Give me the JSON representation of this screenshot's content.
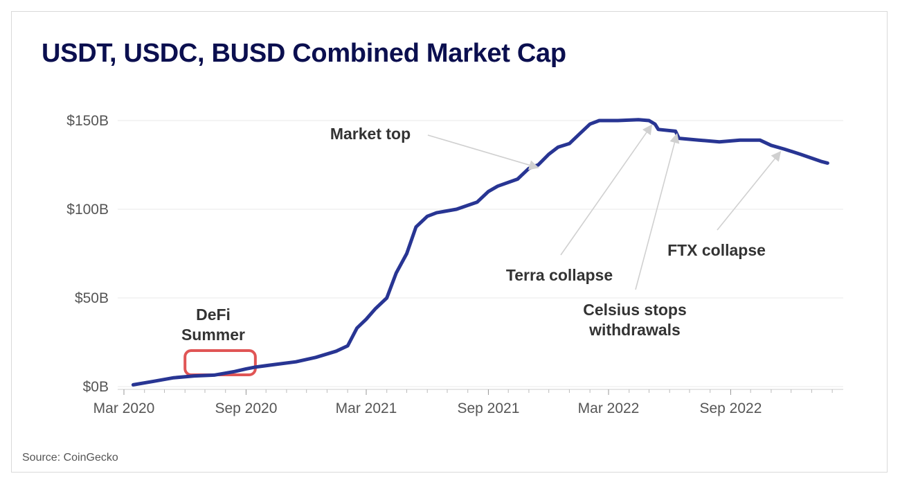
{
  "chart_data": {
    "type": "line",
    "title": "USDT, USDC, BUSD Combined Market Cap",
    "source": "Source: CoinGecko",
    "ylabel": "",
    "xlabel": "",
    "ylim": [
      0,
      150
    ],
    "y_ticks": [
      {
        "value": 0,
        "label": "$0B"
      },
      {
        "value": 50,
        "label": "$50B"
      },
      {
        "value": 100,
        "label": "$100B"
      },
      {
        "value": 150,
        "label": "$150B"
      }
    ],
    "x_range": [
      "2020-03-01",
      "2023-01-31"
    ],
    "x_ticks": [
      {
        "date": "2020-03-01",
        "label": "Mar 2020"
      },
      {
        "date": "2020-09-01",
        "label": "Sep 2020"
      },
      {
        "date": "2021-03-01",
        "label": "Mar 2021"
      },
      {
        "date": "2021-09-01",
        "label": "Sep 2021"
      },
      {
        "date": "2022-03-01",
        "label": "Mar 2022"
      },
      {
        "date": "2022-09-01",
        "label": "Sep 2022"
      }
    ],
    "series": [
      {
        "name": "USDT, USDC, BUSD Combined Market Cap",
        "color": "#283593",
        "points": [
          [
            "2020-03-15",
            1
          ],
          [
            "2020-04-15",
            3
          ],
          [
            "2020-05-15",
            5
          ],
          [
            "2020-06-15",
            6
          ],
          [
            "2020-07-15",
            6.5
          ],
          [
            "2020-08-15",
            8.5
          ],
          [
            "2020-09-01",
            10
          ],
          [
            "2020-09-15",
            11
          ],
          [
            "2020-10-15",
            12.5
          ],
          [
            "2020-11-15",
            14
          ],
          [
            "2020-12-15",
            16.5
          ],
          [
            "2021-01-15",
            20
          ],
          [
            "2021-02-01",
            23
          ],
          [
            "2021-02-15",
            33
          ],
          [
            "2021-03-01",
            38
          ],
          [
            "2021-03-15",
            44
          ],
          [
            "2021-04-01",
            50
          ],
          [
            "2021-04-15",
            64
          ],
          [
            "2021-05-01",
            75
          ],
          [
            "2021-05-15",
            90
          ],
          [
            "2021-06-01",
            96
          ],
          [
            "2021-06-15",
            98
          ],
          [
            "2021-07-15",
            100
          ],
          [
            "2021-08-15",
            104
          ],
          [
            "2021-09-01",
            110
          ],
          [
            "2021-09-15",
            113
          ],
          [
            "2021-10-15",
            117
          ],
          [
            "2021-11-01",
            123
          ],
          [
            "2021-11-15",
            125
          ],
          [
            "2021-12-01",
            131
          ],
          [
            "2021-12-15",
            135
          ],
          [
            "2022-01-01",
            137
          ],
          [
            "2022-01-15",
            142
          ],
          [
            "2022-02-01",
            148
          ],
          [
            "2022-02-15",
            150
          ],
          [
            "2022-03-15",
            150
          ],
          [
            "2022-04-15",
            150.5
          ],
          [
            "2022-05-01",
            150
          ],
          [
            "2022-05-10",
            148
          ],
          [
            "2022-05-15",
            145
          ],
          [
            "2022-06-10",
            144
          ],
          [
            "2022-06-15",
            140
          ],
          [
            "2022-07-15",
            139
          ],
          [
            "2022-08-15",
            138
          ],
          [
            "2022-09-15",
            139
          ],
          [
            "2022-10-15",
            139
          ],
          [
            "2022-11-01",
            136
          ],
          [
            "2022-11-20",
            134
          ],
          [
            "2022-12-15",
            131
          ],
          [
            "2023-01-15",
            127
          ],
          [
            "2023-01-25",
            126
          ]
        ]
      }
    ],
    "annotations": [
      {
        "id": "market-top",
        "lines": [
          "Market top"
        ],
        "arrow_to": [
          "2021-11-15",
          125
        ]
      },
      {
        "id": "terra-collapse",
        "lines": [
          "Terra collapse"
        ],
        "arrow_to": [
          "2022-05-05",
          149
        ]
      },
      {
        "id": "celsius",
        "lines": [
          "Celsius stops",
          "withdrawals"
        ],
        "arrow_to": [
          "2022-06-12",
          144
        ]
      },
      {
        "id": "ftx-collapse",
        "lines": [
          "FTX collapse"
        ],
        "arrow_to": [
          "2022-11-15",
          134
        ]
      },
      {
        "id": "defi-summer",
        "lines": [
          "DeFi",
          "Summer"
        ],
        "highlight": [
          "2020-06-01",
          "2020-09-15"
        ]
      }
    ]
  }
}
